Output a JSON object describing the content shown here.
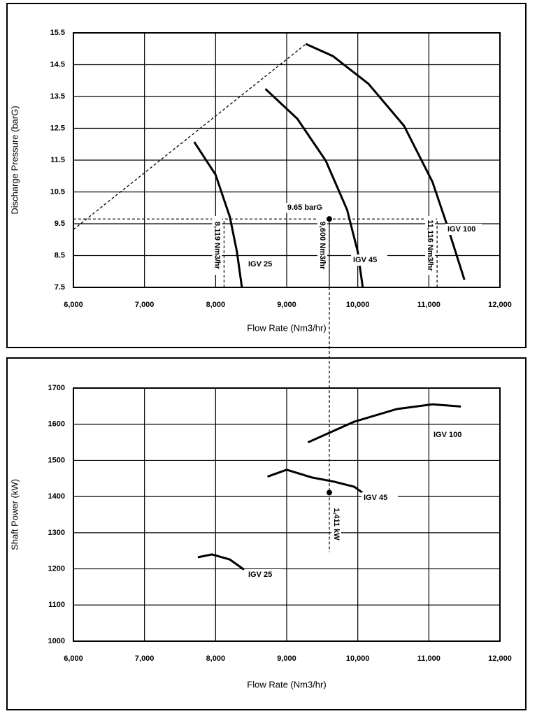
{
  "chart_data": [
    {
      "type": "line",
      "x_label": "Flow Rate (Nm3/hr)",
      "y_label": "Discharge Pressure (barG)",
      "xlim": [
        6000,
        12000
      ],
      "xticks": [
        {
          "value": 6000,
          "label": "6,000"
        },
        {
          "value": 7000,
          "label": "7,000"
        },
        {
          "value": 8000,
          "label": "8,000"
        },
        {
          "value": 9000,
          "label": "9,000"
        },
        {
          "value": 10000,
          "label": "10,000"
        },
        {
          "value": 11000,
          "label": "11,000"
        },
        {
          "value": 12000,
          "label": "12,000"
        }
      ],
      "ylim": [
        7.5,
        15.5
      ],
      "yticks": [
        7.5,
        8.5,
        9.5,
        10.5,
        11.5,
        12.5,
        13.5,
        14.5,
        15.5
      ],
      "grid": true,
      "series": [
        {
          "name": "IGV 25",
          "color": "#000000",
          "x": [
            7700,
            8000,
            8200,
            8300,
            8370
          ],
          "values": [
            12.07,
            11.04,
            9.72,
            8.62,
            7.5
          ]
        },
        {
          "name": "IGV 45",
          "color": "#000000",
          "x": [
            8700,
            9150,
            9550,
            9850,
            10000,
            10070
          ],
          "values": [
            13.74,
            12.8,
            11.48,
            9.94,
            8.62,
            7.5
          ]
        },
        {
          "name": "IGV 100",
          "color": "#000000",
          "x": [
            9270,
            9650,
            10150,
            10650,
            11050,
            11250,
            11500
          ],
          "values": [
            15.15,
            14.77,
            13.9,
            12.58,
            10.82,
            9.5,
            7.74
          ]
        }
      ],
      "surge_line": {
        "x": [
          6000,
          9270
        ],
        "values": [
          9.32,
          15.15
        ],
        "color": "#000000"
      },
      "pressure_marker": {
        "value": 9.65,
        "label": "9.65 barG"
      },
      "flow_markers": [
        {
          "value": 8119,
          "label": "8,119 Nm3/hr"
        },
        {
          "value": 9600,
          "label": "9,600 Nm3/hr"
        },
        {
          "value": 11116,
          "label": "11,116 Nm3/hr"
        }
      ]
    },
    {
      "type": "line",
      "x_label": "Flow Rate (Nm3/hr)",
      "y_label": "Shaft Power (kW)",
      "xlim": [
        6000,
        12000
      ],
      "xticks": [
        {
          "value": 6000,
          "label": "6,000"
        },
        {
          "value": 7000,
          "label": "7,000"
        },
        {
          "value": 8000,
          "label": "8,000"
        },
        {
          "value": 9000,
          "label": "9,000"
        },
        {
          "value": 10000,
          "label": "10,000"
        },
        {
          "value": 11000,
          "label": "11,000"
        },
        {
          "value": 12000,
          "label": "12,000"
        }
      ],
      "ylim": [
        1000,
        1700
      ],
      "yticks": [
        1000,
        1100,
        1200,
        1300,
        1400,
        1500,
        1600,
        1700
      ],
      "grid": true,
      "series": [
        {
          "name": "IGV 25",
          "color": "#000000",
          "x": [
            7750,
            7950,
            8200,
            8400
          ],
          "values": [
            1232,
            1240,
            1226,
            1198
          ]
        },
        {
          "name": "IGV 45",
          "color": "#000000",
          "x": [
            8730,
            9000,
            9350,
            9670,
            9950,
            10100
          ],
          "values": [
            1455,
            1474,
            1453,
            1441,
            1427,
            1406
          ]
        },
        {
          "name": "IGV 100",
          "color": "#000000",
          "x": [
            9300,
            9950,
            10550,
            11050,
            11450
          ],
          "values": [
            1550,
            1607,
            1642,
            1655,
            1649
          ]
        }
      ],
      "power_marker": {
        "x": 9600,
        "value": 1411,
        "label": "1,411 kW"
      }
    }
  ]
}
